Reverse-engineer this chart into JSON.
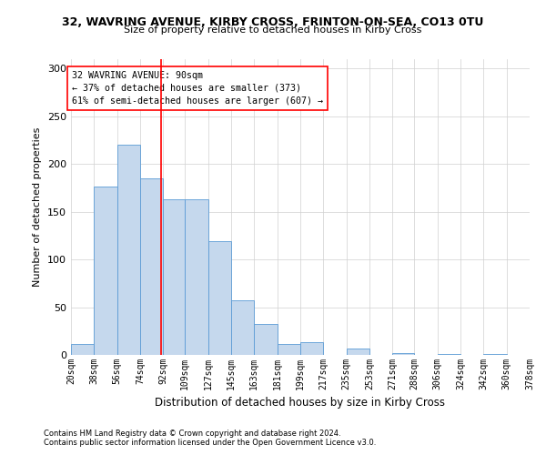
{
  "title": "32, WAVRING AVENUE, KIRBY CROSS, FRINTON-ON-SEA, CO13 0TU",
  "subtitle": "Size of property relative to detached houses in Kirby Cross",
  "xlabel": "Distribution of detached houses by size in Kirby Cross",
  "ylabel": "Number of detached properties",
  "footnote1": "Contains HM Land Registry data © Crown copyright and database right 2024.",
  "footnote2": "Contains public sector information licensed under the Open Government Licence v3.0.",
  "annotation_line1": "32 WAVRING AVENUE: 90sqm",
  "annotation_line2": "← 37% of detached houses are smaller (373)",
  "annotation_line3": "61% of semi-detached houses are larger (607) →",
  "bar_color": "#c5d8ed",
  "bar_edge_color": "#5b9bd5",
  "vline_color": "red",
  "vline_x": 90,
  "bin_edges": [
    20,
    38,
    56,
    74,
    92,
    109,
    127,
    145,
    163,
    181,
    199,
    217,
    235,
    253,
    271,
    288,
    306,
    324,
    342,
    360,
    378
  ],
  "bin_labels": [
    "20sqm",
    "38sqm",
    "56sqm",
    "74sqm",
    "92sqm",
    "109sqm",
    "127sqm",
    "145sqm",
    "163sqm",
    "181sqm",
    "199sqm",
    "217sqm",
    "235sqm",
    "253sqm",
    "271sqm",
    "288sqm",
    "306sqm",
    "324sqm",
    "342sqm",
    "360sqm",
    "378sqm"
  ],
  "bar_heights": [
    11,
    176,
    220,
    185,
    163,
    163,
    119,
    57,
    32,
    11,
    13,
    0,
    7,
    0,
    2,
    0,
    1,
    0,
    1,
    0
  ],
  "ylim": [
    0,
    310
  ],
  "yticks": [
    0,
    50,
    100,
    150,
    200,
    250,
    300
  ],
  "background_color": "#ffffff",
  "grid_color": "#d0d0d0"
}
